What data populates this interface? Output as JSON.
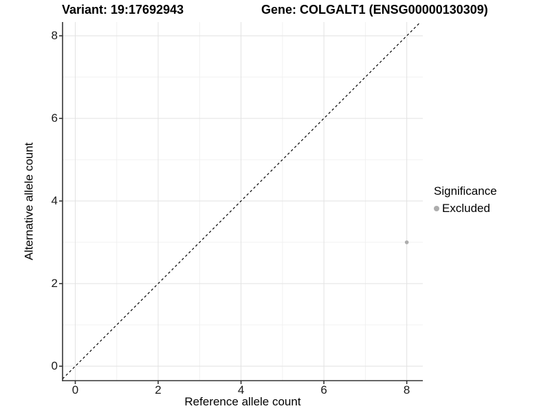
{
  "header": {
    "variant_title": "Variant: 19:17692943",
    "gene_title": "Gene: COLGALT1 (ENSG00000130309)"
  },
  "chart_data": {
    "type": "scatter",
    "title": "Variant: 19:17692943   Gene: COLGALT1 (ENSG00000130309)",
    "xlabel": "Reference allele count",
    "ylabel": "Alternative allele count",
    "xlim": [
      -0.31,
      8.38
    ],
    "ylim": [
      -0.35,
      8.35
    ],
    "x_ticks": [
      0,
      2,
      4,
      6,
      8
    ],
    "y_ticks": [
      0,
      2,
      4,
      6,
      8
    ],
    "x_minor_ticks": [
      1,
      3,
      5,
      7
    ],
    "y_minor_ticks": [
      1,
      3,
      5,
      7
    ],
    "grid": "major+minor",
    "identity_line": {
      "type": "abline",
      "slope": 1,
      "intercept": 0,
      "style": "dashed",
      "color": "#000000"
    },
    "series": [
      {
        "name": "Excluded",
        "color": "#adadad",
        "points": [
          {
            "x": 8,
            "y": 3
          }
        ]
      }
    ],
    "legend": {
      "title": "Significance",
      "position": "right",
      "items": [
        {
          "label": "Excluded",
          "color": "#adadad",
          "marker": "circle"
        }
      ]
    }
  },
  "colors": {
    "grid_major": "#e2e2e2",
    "grid_minor": "#f0f0f0",
    "axis": "#333333",
    "background": "#ffffff"
  }
}
